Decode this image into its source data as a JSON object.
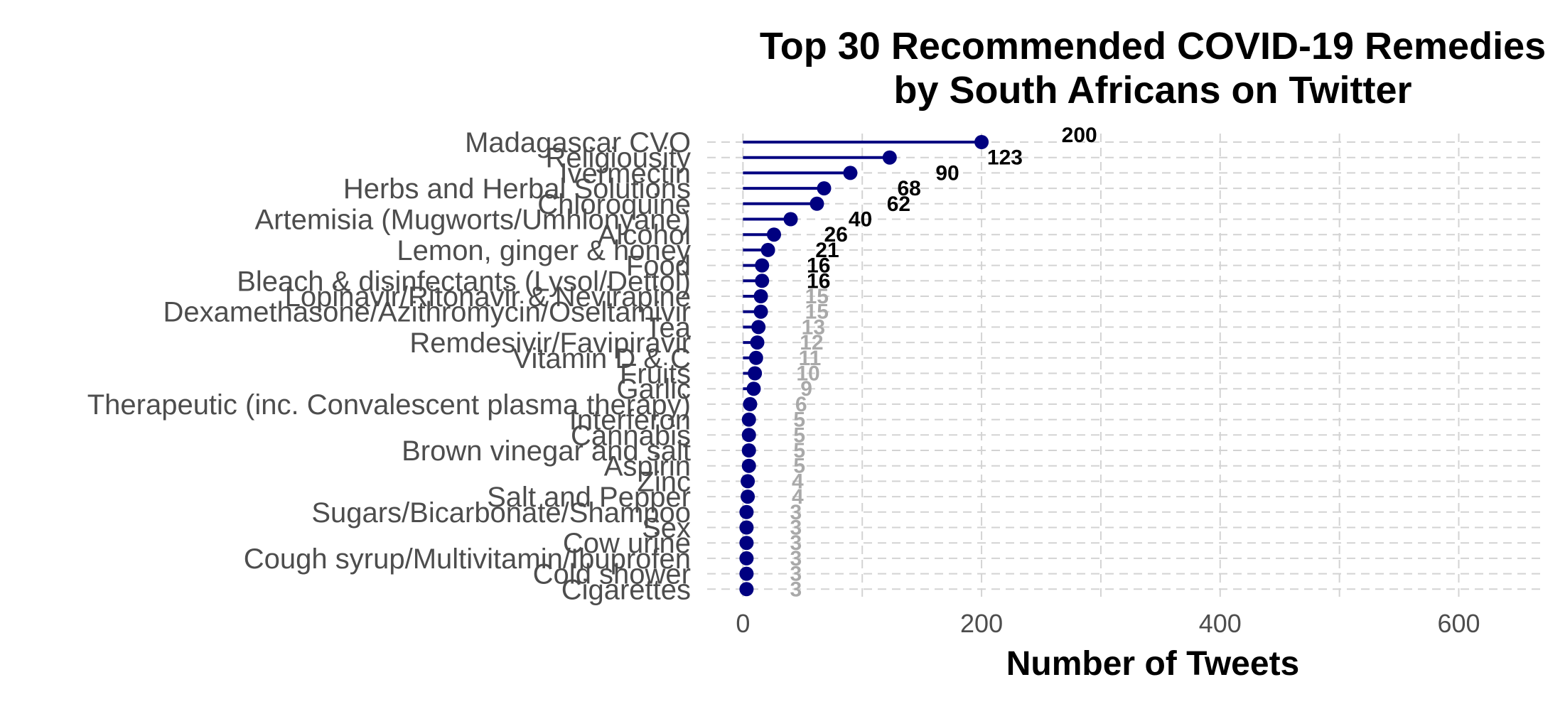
{
  "chart_data": {
    "type": "lollipop",
    "title": "Top 30 Recommended COVID-19 Remedies",
    "subtitle": "by South Africans on Twitter",
    "xlabel": "Number of Tweets",
    "ylabel": "",
    "xlim": [
      -30,
      670
    ],
    "xticks": [
      0,
      200,
      400,
      600
    ],
    "grid": true,
    "point_color": "#000080",
    "label_color_high": "#000000",
    "label_color_low": "#a9a9a9",
    "categories": [
      "Madagascar CVO",
      "Religiousity",
      "Ivermectin",
      "Herbs and Herbal Solutions",
      "Chloroquine",
      "Artemisia (Mugworts/Umhlonyane)",
      "Alcohol",
      "Lemon, ginger & honey",
      "Food",
      "Bleach & disinfectants (Lysol/Dettol)",
      "Lopinavir/Ritonavir & Nevirapine",
      "Dexamethasone/Azithromycin/Oseltamivir",
      "Tea",
      "Remdesivir/Favipiravir",
      "Vitamin D & C",
      "Fruits",
      "Garlic",
      "Therapeutic (inc. Convalescent plasma therapy)",
      "Interferon",
      "Cannabis",
      "Brown vinegar and salt",
      "Aspirin",
      "Zinc",
      "Salt and Pepper",
      "Sugars/Bicarbonate/Shampoo",
      "Sex",
      "Cow urine",
      "Cough syrup/Multivitamin/Ibuprofen",
      "Cold shower",
      "Cigarettes"
    ],
    "values": [
      200,
      123,
      90,
      68,
      62,
      40,
      26,
      21,
      16,
      16,
      15,
      15,
      13,
      12,
      11,
      10,
      9,
      6,
      5,
      5,
      5,
      5,
      4,
      4,
      3,
      3,
      3,
      3,
      3,
      3
    ],
    "value_labels": [
      "200",
      "123",
      "90",
      "68",
      "62",
      "40",
      "26",
      "21",
      "16",
      "16",
      "15",
      "15",
      "13",
      "12",
      "11",
      "10",
      "9",
      "6",
      "5",
      "5",
      "5",
      "5",
      "4",
      "4",
      "3",
      "3",
      "3",
      "3",
      "3",
      "3"
    ]
  }
}
